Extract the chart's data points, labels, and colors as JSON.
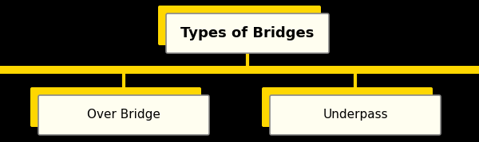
{
  "title": "Types of Bridges",
  "children": [
    "Over Bridge",
    "Underpass"
  ],
  "background_color": "#000000",
  "box_face_color": "#fffef0",
  "box_edge_color": "#888888",
  "shadow_color": "#FFD700",
  "line_color": "#C8A800",
  "text_color": "#000000",
  "title_fontsize": 13,
  "child_fontsize": 11,
  "fig_width": 6.0,
  "fig_height": 1.79
}
